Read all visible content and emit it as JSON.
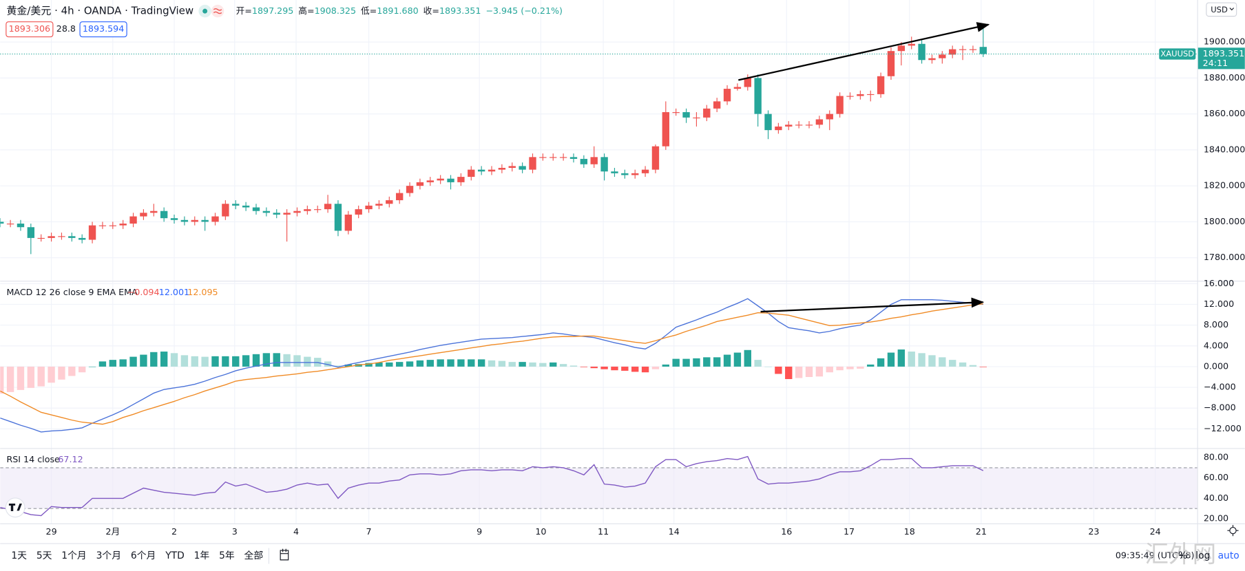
{
  "header": {
    "symbol": "黄金/美元 · 4h · OANDA · TradingView",
    "ohlc_labels": [
      "开=",
      "高=",
      "低=",
      "收="
    ],
    "ohlc_values": [
      "1897.295",
      "1908.325",
      "1891.680",
      "1893.351"
    ],
    "change": "−3.945 (−0.21%)",
    "bid": "1893.306",
    "spread": "28.8",
    "ask": "1893.594"
  },
  "price_scale": {
    "symbol": "XAUUSD",
    "countdown": "24:11",
    "currency": "USD"
  },
  "toolbar": {
    "ranges": [
      "1天",
      "5天",
      "1个月",
      "3个月",
      "6个月",
      "YTD",
      "1年",
      "5年",
      "全部"
    ],
    "time": "09:35:49 (UTC+8)",
    "percent": "%",
    "log": "log",
    "auto": "auto"
  },
  "watermark": "汇外网",
  "chart_data": [
    {
      "type": "candlestick",
      "up_color": "#ef5350",
      "down_color": "#26a69a",
      "last_color": "#26a69a",
      "grid": true,
      "categories": [
        null,
        null,
        null,
        null,
        null,
        null,
        null,
        null,
        null,
        null,
        null,
        null,
        null,
        null,
        null,
        null,
        null,
        null,
        null,
        null,
        null,
        null,
        null,
        null,
        null,
        null,
        null,
        null,
        null,
        null,
        null,
        null,
        null,
        null,
        null,
        null,
        null,
        null,
        null,
        null,
        null,
        null,
        null,
        null,
        null,
        null,
        null,
        null,
        null,
        null,
        null,
        null,
        null,
        null,
        null,
        null,
        null,
        null,
        null,
        null,
        null,
        null,
        null,
        null,
        null,
        null,
        null,
        null,
        null,
        null,
        null,
        null,
        null,
        null,
        null,
        null,
        null,
        null,
        null,
        null,
        null,
        null,
        null,
        null,
        null,
        null,
        null,
        null,
        null,
        null,
        null,
        null,
        null,
        null,
        null,
        null,
        null
      ],
      "open": [
        1800,
        1799,
        1799,
        1797,
        1791,
        1791,
        1792,
        1792,
        1791,
        1790,
        1798,
        1798,
        1798,
        1799,
        1803,
        1805,
        1806,
        1802,
        1801,
        1800,
        1801,
        1800,
        1803,
        1810,
        1809,
        1808,
        1806,
        1805,
        1804,
        1805,
        1806,
        1807,
        1807,
        1810,
        1795,
        1804,
        1807,
        1809,
        1810,
        1812,
        1816,
        1820,
        1822,
        1823,
        1824,
        1822,
        1825,
        1829,
        1828,
        1829,
        1830,
        1831,
        1829,
        1836,
        1836,
        1836,
        1836,
        1835,
        1832,
        1836,
        1828,
        1827,
        1826,
        1827,
        1829,
        1842,
        1861,
        1861,
        1858,
        1858,
        1863,
        1867,
        1874,
        1875,
        1880,
        1860,
        1851,
        1853,
        1854,
        1854,
        1854,
        1857,
        1860,
        1870,
        1870,
        1871,
        1871,
        1881,
        1895,
        1898,
        1899,
        1890,
        1891,
        1893,
        1896,
        1896,
        1897.295
      ],
      "high": [
        1802,
        1801,
        1801,
        1799,
        1793,
        1794,
        1794,
        1794,
        1793,
        1800,
        1800,
        1800,
        1801,
        1805,
        1807,
        1810,
        1808,
        1804,
        1803,
        1803,
        1803,
        1805,
        1812,
        1812,
        1811,
        1810,
        1808,
        1807,
        1807,
        1808,
        1809,
        1809,
        1815,
        1812,
        1806,
        1809,
        1811,
        1812,
        1814,
        1818,
        1822,
        1824,
        1825,
        1826,
        1826,
        1827,
        1831,
        1831,
        1831,
        1832,
        1833,
        1833,
        1838,
        1838,
        1838,
        1838,
        1838,
        1837,
        1842,
        1838,
        1830,
        1829,
        1829,
        1831,
        1843,
        1867,
        1863,
        1863,
        1861,
        1865,
        1869,
        1876,
        1877,
        1882,
        1882,
        1862,
        1855,
        1856,
        1856,
        1856,
        1859,
        1862,
        1872,
        1872,
        1873,
        1873,
        1883,
        1897,
        1900,
        1903,
        1901,
        1893,
        1895,
        1898,
        1898,
        1898,
        1908.325
      ],
      "low": [
        1797,
        1797,
        1795,
        1782,
        1789,
        1789,
        1790,
        1789,
        1788,
        1788,
        1796,
        1796,
        1796,
        1797,
        1801,
        1803,
        1800,
        1799,
        1798,
        1798,
        1795,
        1798,
        1801,
        1807,
        1806,
        1804,
        1803,
        1802,
        1789,
        1803,
        1804,
        1805,
        1805,
        1792,
        1793,
        1802,
        1805,
        1807,
        1808,
        1810,
        1814,
        1818,
        1820,
        1821,
        1818,
        1820,
        1823,
        1826,
        1826,
        1827,
        1828,
        1827,
        1827,
        1834,
        1834,
        1834,
        1833,
        1830,
        1830,
        1823,
        1825,
        1824,
        1824,
        1825,
        1827,
        1840,
        1859,
        1855,
        1853,
        1856,
        1861,
        1865,
        1873,
        1873,
        1853,
        1846,
        1849,
        1851,
        1852,
        1852,
        1852,
        1851,
        1858,
        1868,
        1868,
        1867,
        1869,
        1879,
        1887,
        1896,
        1888,
        1888,
        1888,
        1891,
        1890,
        1894,
        1891.68
      ],
      "close": [
        1799,
        1799,
        1797,
        1791,
        1791,
        1792,
        1792,
        1791,
        1790,
        1798,
        1798,
        1798,
        1799,
        1803,
        1805,
        1806,
        1802,
        1801,
        1800,
        1801,
        1800,
        1803,
        1810,
        1809,
        1808,
        1806,
        1805,
        1804,
        1805,
        1806,
        1807,
        1807,
        1810,
        1795,
        1804,
        1807,
        1809,
        1810,
        1812,
        1816,
        1820,
        1822,
        1823,
        1824,
        1822,
        1825,
        1829,
        1828,
        1829,
        1830,
        1831,
        1829,
        1836,
        1836,
        1836,
        1836,
        1835,
        1832,
        1836,
        1828,
        1827,
        1826,
        1827,
        1829,
        1842,
        1861,
        1861,
        1858,
        1858,
        1863,
        1867,
        1874,
        1875,
        1880,
        1860,
        1851,
        1853,
        1854,
        1854,
        1854,
        1857,
        1860,
        1870,
        1870,
        1871,
        1871,
        1881,
        1895,
        1898,
        1899,
        1890,
        1891,
        1893,
        1896,
        1896,
        1896,
        1893.351
      ],
      "xlim": [
        0,
        116.9
      ],
      "xticks": [
        {
          "value": 5.0,
          "label": "29"
        },
        {
          "value": 11.0,
          "label": "2月"
        },
        {
          "value": 17.0,
          "label": "2"
        },
        {
          "value": 22.9,
          "label": "3"
        },
        {
          "value": 28.9,
          "label": "4"
        },
        {
          "value": 36.0,
          "label": "7"
        },
        {
          "value": 46.8,
          "label": "9"
        },
        {
          "value": 52.8,
          "label": "10"
        },
        {
          "value": 58.9,
          "label": "11"
        },
        {
          "value": 65.8,
          "label": "14"
        },
        {
          "value": 76.8,
          "label": "16"
        },
        {
          "value": 82.9,
          "label": "17"
        },
        {
          "value": 88.8,
          "label": "18"
        },
        {
          "value": 95.8,
          "label": "21"
        },
        {
          "value": 106.8,
          "label": "23"
        },
        {
          "value": 112.8,
          "label": "24"
        }
      ],
      "ylim": [
        1767.2,
        1923.4
      ],
      "yticks": [
        {
          "value": 1780,
          "label": "1780.000"
        },
        {
          "value": 1800,
          "label": "1800.000"
        },
        {
          "value": 1820,
          "label": "1820.000"
        },
        {
          "value": 1840,
          "label": "1840.000"
        },
        {
          "value": 1860,
          "label": "1860.000"
        },
        {
          "value": 1880,
          "label": "1880.000"
        },
        {
          "value": 1900,
          "label": "1900.000"
        }
      ]
    },
    {
      "type": "macd",
      "title": "MACD 12 26 close 9 EMA EMA",
      "value_labels": [
        "−0.094",
        "12.001",
        "12.095"
      ],
      "histogram_colors": [
        "#26a69a",
        "#b2dfdb",
        "#ff5252",
        "#ffcdd2"
      ],
      "histogram": [
        -5.2,
        -4.9,
        -4.5,
        -4.1,
        -3.8,
        -3.1,
        -2.5,
        -1.8,
        -1.1,
        0.0,
        1.0,
        1.3,
        1.4,
        1.9,
        2.3,
        2.8,
        2.9,
        2.6,
        2.2,
        2.0,
        1.9,
        2.0,
        2.0,
        2.0,
        2.2,
        2.4,
        2.6,
        2.6,
        2.4,
        2.2,
        1.9,
        1.7,
        1.0,
        0.2,
        0.4,
        0.5,
        0.7,
        0.8,
        0.8,
        0.9,
        1.0,
        1.2,
        1.3,
        1.4,
        1.4,
        1.4,
        1.4,
        1.4,
        1.2,
        1.1,
        0.9,
        0.9,
        0.8,
        0.7,
        0.8,
        0.5,
        0.2,
        -0.1,
        -0.3,
        -0.5,
        -0.7,
        -0.8,
        -1.0,
        -1.1,
        -0.5,
        0.4,
        1.5,
        1.5,
        1.6,
        1.8,
        1.8,
        2.3,
        2.7,
        3.2,
        1.3,
        0.0,
        -1.4,
        -2.4,
        -2.2,
        -2.0,
        -1.9,
        -1.1,
        -0.7,
        -0.5,
        -0.4,
        0.4,
        1.6,
        2.7,
        3.3,
        2.9,
        2.6,
        2.2,
        1.8,
        1.3,
        0.8,
        0.3,
        -0.094
      ],
      "series": [
        {
          "color": "#4a72d9",
          "values": [
            -9.9,
            -10.6,
            -11.3,
            -11.9,
            -12.6,
            -12.4,
            -12.3,
            -12.1,
            -11.8,
            -10.9,
            -10.1,
            -9.3,
            -8.4,
            -7.3,
            -6.2,
            -5.1,
            -4.4,
            -4.1,
            -3.8,
            -3.4,
            -2.8,
            -2.1,
            -1.5,
            -0.8,
            -0.3,
            0.1,
            0.5,
            0.8,
            0.8,
            0.8,
            0.8,
            0.8,
            0.4,
            -0.1,
            0.4,
            0.8,
            1.2,
            1.6,
            2.0,
            2.4,
            2.8,
            3.3,
            3.7,
            4.1,
            4.4,
            4.7,
            5.0,
            5.3,
            5.4,
            5.5,
            5.6,
            5.8,
            6.0,
            6.2,
            6.5,
            6.3,
            6.0,
            5.8,
            5.6,
            5.1,
            4.6,
            4.2,
            3.7,
            3.4,
            4.5,
            6.0,
            7.6,
            8.3,
            9.0,
            9.8,
            10.5,
            11.4,
            12.2,
            13.1,
            11.7,
            10.3,
            8.7,
            7.5,
            7.2,
            6.9,
            6.5,
            6.8,
            7.3,
            7.7,
            8.0,
            9.0,
            10.5,
            12.0,
            12.9,
            12.9,
            12.9,
            12.9,
            12.8,
            12.6,
            12.4,
            12.2,
            12.001
          ]
        },
        {
          "color": "#f08a24",
          "values": [
            -4.7,
            -5.7,
            -6.8,
            -7.8,
            -8.8,
            -9.3,
            -9.8,
            -10.3,
            -10.7,
            -10.9,
            -11.1,
            -10.6,
            -9.8,
            -9.2,
            -8.5,
            -7.9,
            -7.3,
            -6.7,
            -6.0,
            -5.4,
            -4.7,
            -4.1,
            -3.5,
            -2.8,
            -2.5,
            -2.3,
            -2.1,
            -1.8,
            -1.6,
            -1.4,
            -1.1,
            -0.9,
            -0.6,
            -0.3,
            0.0,
            0.3,
            0.5,
            0.8,
            1.2,
            1.5,
            1.8,
            2.1,
            2.4,
            2.7,
            3.0,
            3.3,
            3.6,
            3.9,
            4.2,
            4.4,
            4.7,
            4.9,
            5.2,
            5.5,
            5.7,
            5.8,
            5.8,
            5.9,
            5.9,
            5.6,
            5.3,
            5.0,
            4.7,
            4.5,
            5.0,
            5.6,
            6.1,
            6.8,
            7.4,
            8.0,
            8.7,
            9.1,
            9.5,
            9.9,
            10.4,
            10.3,
            10.1,
            9.9,
            9.4,
            8.9,
            8.4,
            7.9,
            8.0,
            8.2,
            8.4,
            8.6,
            8.9,
            9.3,
            9.6,
            10.0,
            10.3,
            10.7,
            11.0,
            11.3,
            11.6,
            11.9,
            12.095
          ]
        }
      ],
      "ylim": [
        -15.7,
        16.4
      ],
      "yticks": [
        {
          "value": -12,
          "label": "−12.000"
        },
        {
          "value": -8,
          "label": "−8.000"
        },
        {
          "value": -4,
          "label": "−4.000"
        },
        {
          "value": 0,
          "label": "0.000"
        },
        {
          "value": 4,
          "label": "4.000"
        },
        {
          "value": 8,
          "label": "8.000"
        },
        {
          "value": 12,
          "label": "12.000"
        },
        {
          "value": 16,
          "label": "16.000"
        }
      ]
    },
    {
      "type": "line",
      "title": "RSI 14 close",
      "value_label": "67.12",
      "color": "#7e57c2",
      "band": [
        30,
        70
      ],
      "band_color": "#ede7f6",
      "values": [
        31,
        29,
        27,
        24,
        23,
        32,
        31,
        31,
        31,
        40,
        40,
        40,
        40,
        45,
        50,
        48,
        46,
        45,
        44,
        43,
        45,
        46,
        56,
        52,
        54,
        50,
        46,
        47,
        49,
        53,
        55,
        53,
        54,
        40,
        50,
        53,
        55,
        55,
        57,
        58,
        63,
        64,
        64,
        63,
        64,
        67,
        68,
        68,
        67,
        68,
        68,
        67,
        71,
        70,
        71,
        70,
        67,
        63,
        73,
        54,
        53,
        51,
        52,
        55,
        71,
        78,
        78,
        71,
        74,
        76,
        77,
        79,
        78,
        81,
        59,
        54,
        55,
        55,
        56,
        57,
        59,
        63,
        66,
        66,
        67,
        72,
        78,
        78,
        79,
        79,
        70,
        70,
        71,
        72,
        72,
        72,
        67.12
      ],
      "ylim": [
        15.4,
        88.5
      ],
      "yticks": [
        {
          "value": 20,
          "label": "20.00"
        },
        {
          "value": 40,
          "label": "40.00"
        },
        {
          "value": 60,
          "label": "60.00"
        },
        {
          "value": 80,
          "label": "80.00"
        }
      ]
    }
  ]
}
